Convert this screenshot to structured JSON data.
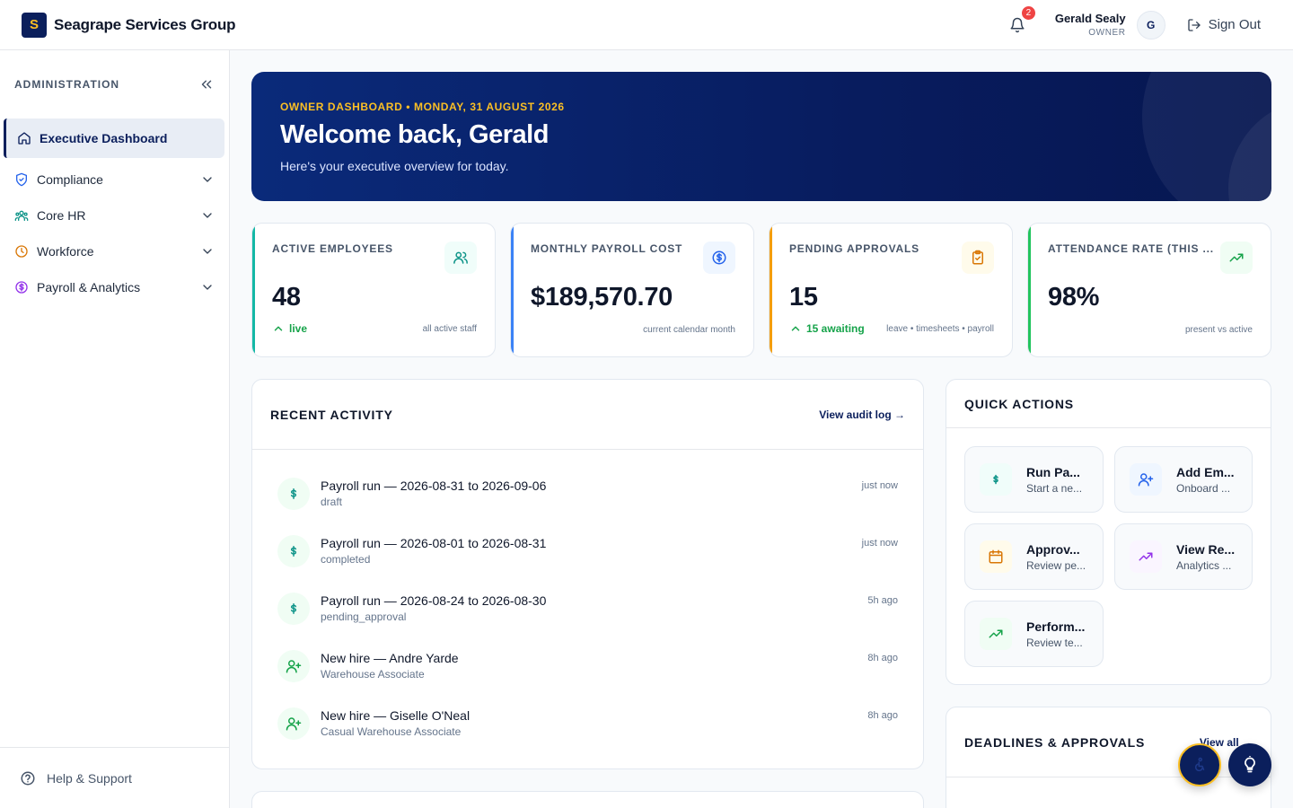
{
  "brand": {
    "logo_letter": "S",
    "name": "Seagrape Services Group"
  },
  "header": {
    "notifications_count": "2",
    "user_name": "Gerald Sealy",
    "user_role": "OWNER",
    "avatar_initial": "G",
    "signout_label": "Sign Out"
  },
  "sidebar": {
    "title": "ADMINISTRATION",
    "items": [
      {
        "label": "Executive Dashboard",
        "icon": "home-icon",
        "active": true
      },
      {
        "label": "Compliance",
        "icon": "shield-check-icon"
      },
      {
        "label": "Core HR",
        "icon": "users-group-icon"
      },
      {
        "label": "Workforce",
        "icon": "clock-icon"
      },
      {
        "label": "Payroll & Analytics",
        "icon": "dollar-circle-icon"
      }
    ],
    "help_label": "Help & Support"
  },
  "hero": {
    "kicker": "OWNER DASHBOARD • MONDAY, 31 AUGUST 2026",
    "title": "Welcome back, Gerald",
    "subtitle": "Here's your executive overview for today."
  },
  "kpis": [
    {
      "label": "ACTIVE EMPLOYEES",
      "value": "48",
      "trend": "live",
      "note": "all active staff",
      "accent": "#14b8a6",
      "icon": "users-icon"
    },
    {
      "label": "MONTHLY PAYROLL COST",
      "value": "$189,570.70",
      "trend": "",
      "note": "current calendar month",
      "accent": "#3b82f6",
      "icon": "dollar-circle-icon"
    },
    {
      "label": "PENDING APPROVALS",
      "value": "15",
      "trend": "15 awaiting",
      "note": "leave • timesheets • payroll",
      "accent": "#f59e0b",
      "icon": "clipboard-check-icon"
    },
    {
      "label": "ATTENDANCE RATE (THIS ...",
      "value": "98%",
      "trend": "",
      "note": "present vs active",
      "accent": "#22c55e",
      "icon": "trending-up-icon"
    }
  ],
  "recent_activity": {
    "title": "RECENT ACTIVITY",
    "link": "View audit log →",
    "items": [
      {
        "title": "Payroll run — 2026-08-31 to 2026-09-06",
        "sub": "draft",
        "time": "just now",
        "icon": "dollar-icon"
      },
      {
        "title": "Payroll run — 2026-08-01 to 2026-08-31",
        "sub": "completed",
        "time": "just now",
        "icon": "dollar-icon"
      },
      {
        "title": "Payroll run — 2026-08-24 to 2026-08-30",
        "sub": "pending_approval",
        "time": "5h ago",
        "icon": "dollar-icon"
      },
      {
        "title": "New hire — Andre Yarde",
        "sub": "Warehouse Associate",
        "time": "8h ago",
        "icon": "user-plus-icon"
      },
      {
        "title": "New hire — Giselle O'Neal",
        "sub": "Casual Warehouse Associate",
        "time": "8h ago",
        "icon": "user-plus-icon"
      }
    ]
  },
  "quick_actions": {
    "title": "QUICK ACTIONS",
    "items": [
      {
        "title": "Run Pa...",
        "sub": "Start a ne...",
        "icon": "dollar-icon",
        "color": "#0d9488",
        "bg": "#f0fdfa"
      },
      {
        "title": "Add Em...",
        "sub": "Onboard ...",
        "icon": "user-plus-icon",
        "color": "#2563eb",
        "bg": "#eff6ff"
      },
      {
        "title": "Approv...",
        "sub": "Review pe...",
        "icon": "calendar-icon",
        "color": "#d97706",
        "bg": "#fffbeb"
      },
      {
        "title": "View Re...",
        "sub": "Analytics ...",
        "icon": "trending-up-icon",
        "color": "#9333ea",
        "bg": "#faf5ff"
      },
      {
        "title": "Perform...",
        "sub": "Review te...",
        "icon": "trending-up-icon",
        "color": "#16a34a",
        "bg": "#f0fdf4"
      }
    ]
  },
  "deadlines": {
    "title": "DEADLINES & APPROVALS",
    "link": "View all →"
  },
  "fabs": {
    "accessibility_icon": "accessibility-icon",
    "tips_icon": "lightbulb-icon"
  }
}
